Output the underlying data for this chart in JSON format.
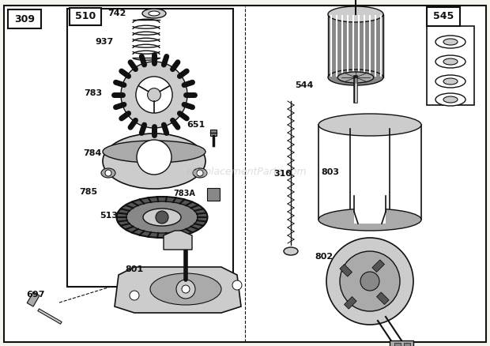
{
  "bg_color": "#f5f5f0",
  "lc": "#111111",
  "gray1": "#aaaaaa",
  "gray2": "#cccccc",
  "gray3": "#888888",
  "gray4": "#555555",
  "watermark": "eReplacementParts.com",
  "wm_color": "#bbbbbb",
  "figsize": [
    6.2,
    4.38
  ],
  "dpi": 100
}
